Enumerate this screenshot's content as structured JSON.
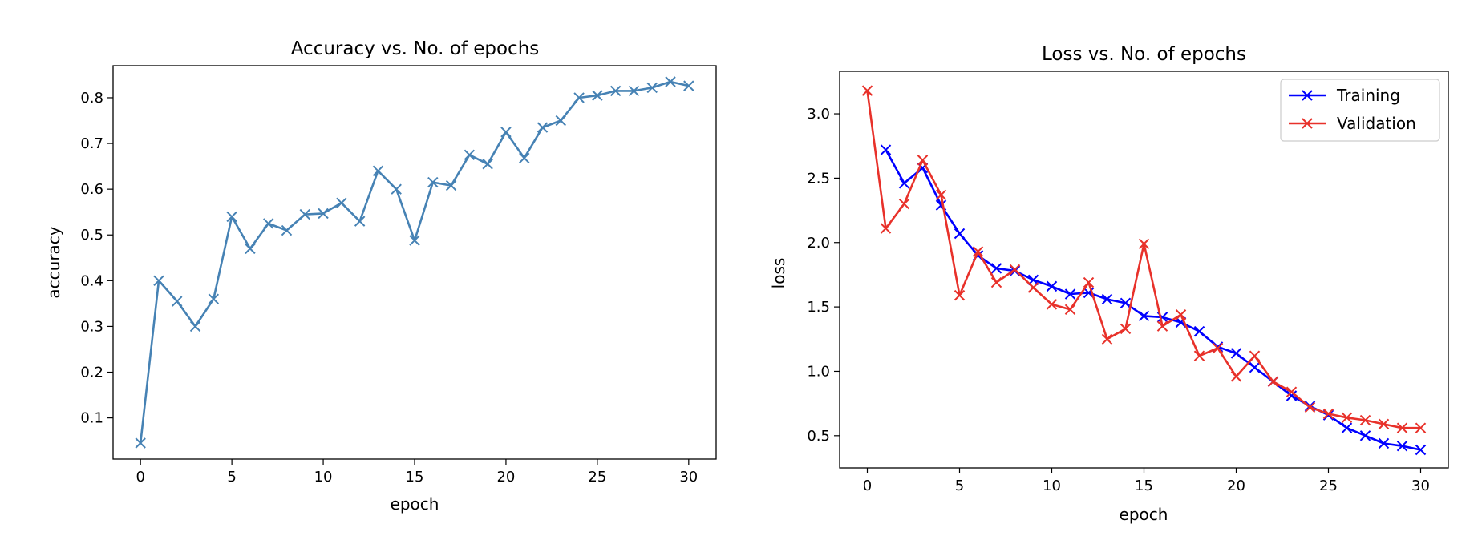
{
  "chart_data": [
    {
      "type": "line",
      "title": "Accuracy vs. No. of epochs",
      "xlabel": "epoch",
      "ylabel": "accuracy",
      "xlim": [
        -1.5,
        31.5
      ],
      "ylim": [
        0.01,
        0.87
      ],
      "xticks": [
        0,
        5,
        10,
        15,
        20,
        25,
        30
      ],
      "yticks": [
        0.1,
        0.2,
        0.3,
        0.4,
        0.5,
        0.6,
        0.7,
        0.8
      ],
      "ytick_labels": [
        "0.1",
        "0.2",
        "0.3",
        "0.4",
        "0.5",
        "0.6",
        "0.7",
        "0.8"
      ],
      "marker": "x",
      "legend": null,
      "grid": false,
      "x": [
        0,
        1,
        2,
        3,
        4,
        5,
        6,
        7,
        8,
        9,
        10,
        11,
        12,
        13,
        14,
        15,
        16,
        17,
        18,
        19,
        20,
        21,
        22,
        23,
        24,
        25,
        26,
        27,
        28,
        29,
        30
      ],
      "series": [
        {
          "name": "",
          "color": "#4682b4",
          "values": [
            0.045,
            0.4,
            0.355,
            0.3,
            0.36,
            0.54,
            0.47,
            0.525,
            0.51,
            0.545,
            0.547,
            0.57,
            0.53,
            0.64,
            0.6,
            0.488,
            0.615,
            0.608,
            0.675,
            0.655,
            0.725,
            0.668,
            0.735,
            0.75,
            0.8,
            0.805,
            0.815,
            0.815,
            0.822,
            0.835,
            0.826
          ]
        }
      ]
    },
    {
      "type": "line",
      "title": "Loss vs. No. of epochs",
      "xlabel": "epoch",
      "ylabel": "loss",
      "xlim": [
        -1.5,
        31.5
      ],
      "ylim": [
        0.25,
        3.33
      ],
      "xticks": [
        0,
        5,
        10,
        15,
        20,
        25,
        30
      ],
      "yticks": [
        0.5,
        1.0,
        1.5,
        2.0,
        2.5,
        3.0
      ],
      "ytick_labels": [
        "0.5",
        "1.0",
        "1.5",
        "2.0",
        "2.5",
        "3.0"
      ],
      "marker": "x",
      "legend": "top-right",
      "grid": false,
      "series": [
        {
          "name": "Training",
          "color": "#0000ff",
          "x": [
            1,
            2,
            3,
            4,
            5,
            6,
            7,
            8,
            9,
            10,
            11,
            12,
            13,
            14,
            15,
            16,
            17,
            18,
            19,
            20,
            21,
            22,
            23,
            24,
            25,
            26,
            27,
            28,
            29,
            30
          ],
          "values": [
            2.72,
            2.46,
            2.58,
            2.29,
            2.07,
            1.9,
            1.8,
            1.78,
            1.71,
            1.66,
            1.6,
            1.61,
            1.56,
            1.53,
            1.43,
            1.42,
            1.38,
            1.31,
            1.19,
            1.14,
            1.03,
            0.92,
            0.81,
            0.73,
            0.66,
            0.56,
            0.5,
            0.44,
            0.42,
            0.39
          ]
        },
        {
          "name": "Validation",
          "color": "#e8312a",
          "x": [
            0,
            1,
            2,
            3,
            4,
            5,
            6,
            7,
            8,
            9,
            10,
            11,
            12,
            13,
            14,
            15,
            16,
            17,
            18,
            19,
            20,
            21,
            22,
            23,
            24,
            25,
            26,
            27,
            28,
            29,
            30
          ],
          "values": [
            3.18,
            2.11,
            2.3,
            2.64,
            2.37,
            1.59,
            1.93,
            1.69,
            1.79,
            1.65,
            1.52,
            1.48,
            1.69,
            1.25,
            1.33,
            1.99,
            1.35,
            1.44,
            1.12,
            1.18,
            0.96,
            1.12,
            0.92,
            0.84,
            0.72,
            0.67,
            0.64,
            0.62,
            0.59,
            0.56,
            0.56
          ]
        }
      ]
    }
  ]
}
